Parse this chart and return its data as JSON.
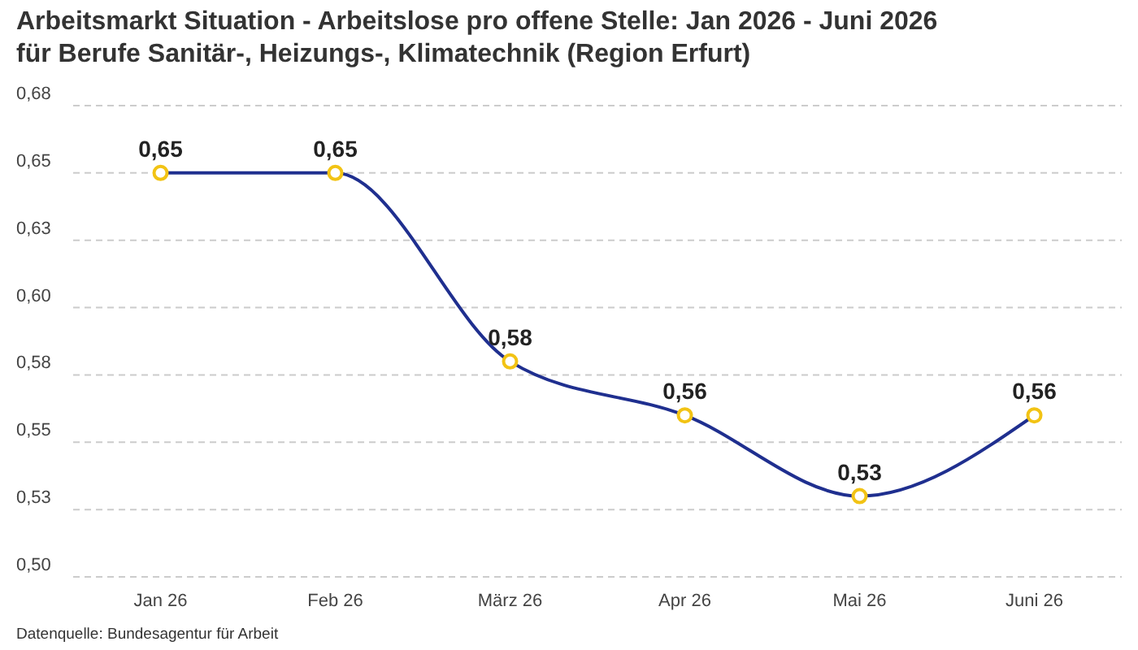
{
  "chart_data": {
    "type": "line",
    "title": "Arbeitsmarkt Situation - Arbeitslose pro offene Stelle: Jan 2026 - Juni 2026 für Berufe Sanitär-, Heizungs-, Klimatechnik (Region Erfurt)",
    "categories": [
      "Jan 26",
      "Feb 26",
      "März 26",
      "Apr 26",
      "Mai 26",
      "Juni 26"
    ],
    "series": [
      {
        "color": "#1f2f8f",
        "values": [
          0.65,
          0.65,
          0.58,
          0.56,
          0.53,
          0.56
        ],
        "value_labels": [
          "0,65",
          "0,65",
          "0,58",
          "0,56",
          "0,53",
          "0,56"
        ]
      }
    ],
    "ylim": [
      0.5,
      0.675
    ],
    "yticks": [
      {
        "value": 0.5,
        "label": "0,50"
      },
      {
        "value": 0.525,
        "label": "0,53"
      },
      {
        "value": 0.55,
        "label": "0,55"
      },
      {
        "value": 0.575,
        "label": "0,58"
      },
      {
        "value": 0.6,
        "label": "0,60"
      },
      {
        "value": 0.625,
        "label": "0,63"
      },
      {
        "value": 0.65,
        "label": "0,65"
      },
      {
        "value": 0.675,
        "label": "0,68"
      }
    ],
    "grid": "y",
    "marker": "circle",
    "annotations": [
      "Datenquelle: Bundesagentur für Arbeit"
    ]
  }
}
